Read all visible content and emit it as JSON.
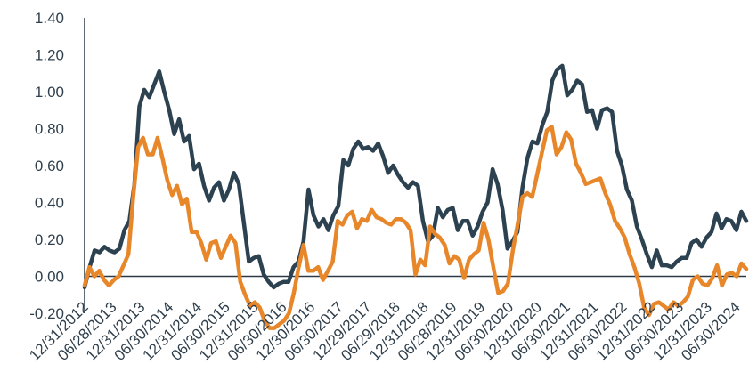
{
  "chart_data": {
    "type": "line",
    "title": "",
    "xlabel": "",
    "ylabel": "",
    "ylim": [
      -0.2,
      1.4
    ],
    "yticks": [
      "1.40",
      "1.20",
      "1.00",
      "0.80",
      "0.60",
      "0.40",
      "0.20",
      "0.00",
      "-0.20"
    ],
    "xticks": [
      "12/31/2012",
      "06/28/2013",
      "12/31/2013",
      "06/30/2014",
      "12/31/2014",
      "06/30/2015",
      "12/31/2015",
      "06/30/2016",
      "12/30/2016",
      "06/30/2017",
      "12/29/2017",
      "06/29/2018",
      "12/31/2018",
      "06/28/2019",
      "12/31/2019",
      "06/30/2020",
      "12/31/2020",
      "06/30/2021",
      "12/31/2021",
      "06/30/2022",
      "12/31/2022",
      "06/30/2023",
      "12/31/2023",
      "06/30/2024"
    ],
    "grid": false,
    "legend": "none",
    "series": [
      {
        "color": "#2d4250",
        "values": [
          -0.06,
          0.05,
          0.14,
          0.13,
          0.16,
          0.14,
          0.13,
          0.15,
          0.25,
          0.3,
          0.5,
          0.92,
          1.01,
          0.97,
          1.04,
          1.11,
          1.0,
          0.9,
          0.77,
          0.85,
          0.73,
          0.76,
          0.58,
          0.61,
          0.49,
          0.41,
          0.48,
          0.51,
          0.41,
          0.47,
          0.56,
          0.5,
          0.29,
          0.08,
          0.1,
          0.11,
          0.01,
          -0.03,
          -0.06,
          -0.04,
          -0.03,
          -0.03,
          0.05,
          0.08,
          0.19,
          0.47,
          0.33,
          0.27,
          0.31,
          0.25,
          0.33,
          0.38,
          0.63,
          0.6,
          0.69,
          0.73,
          0.69,
          0.7,
          0.68,
          0.72,
          0.65,
          0.56,
          0.6,
          0.55,
          0.51,
          0.48,
          0.51,
          0.49,
          0.3,
          0.19,
          0.22,
          0.37,
          0.32,
          0.36,
          0.37,
          0.25,
          0.3,
          0.3,
          0.22,
          0.27,
          0.35,
          0.4,
          0.58,
          0.5,
          0.36,
          0.15,
          0.19,
          0.24,
          0.48,
          0.64,
          0.73,
          0.72,
          0.82,
          0.89,
          1.06,
          1.12,
          1.14,
          0.98,
          1.01,
          1.06,
          1.04,
          0.89,
          0.9,
          0.8,
          0.9,
          0.91,
          0.89,
          0.68,
          0.6,
          0.47,
          0.41,
          0.27,
          0.2,
          0.12,
          0.05,
          0.14,
          0.06,
          0.06,
          0.05,
          0.08,
          0.1,
          0.1,
          0.18,
          0.2,
          0.16,
          0.21,
          0.24,
          0.34,
          0.26,
          0.31,
          0.3,
          0.25,
          0.35,
          0.3
        ]
      },
      {
        "color": "#e8862a",
        "values": [
          -0.05,
          0.05,
          0.0,
          0.03,
          -0.02,
          -0.05,
          -0.02,
          0.0,
          0.06,
          0.12,
          0.43,
          0.7,
          0.75,
          0.66,
          0.66,
          0.75,
          0.64,
          0.52,
          0.44,
          0.49,
          0.39,
          0.42,
          0.24,
          0.24,
          0.18,
          0.09,
          0.18,
          0.19,
          0.1,
          0.16,
          0.22,
          0.18,
          -0.03,
          -0.1,
          -0.16,
          -0.14,
          -0.17,
          -0.24,
          -0.28,
          -0.28,
          -0.26,
          -0.24,
          -0.2,
          -0.09,
          0.05,
          0.17,
          0.03,
          0.03,
          0.05,
          -0.02,
          0.03,
          0.08,
          0.3,
          0.28,
          0.33,
          0.35,
          0.26,
          0.31,
          0.3,
          0.36,
          0.32,
          0.31,
          0.29,
          0.28,
          0.31,
          0.31,
          0.29,
          0.25,
          0.01,
          0.09,
          0.06,
          0.27,
          0.23,
          0.21,
          0.17,
          0.07,
          0.11,
          0.09,
          -0.01,
          0.09,
          0.12,
          0.14,
          0.29,
          0.2,
          0.05,
          -0.09,
          -0.08,
          -0.04,
          0.14,
          0.28,
          0.43,
          0.45,
          0.43,
          0.55,
          0.67,
          0.79,
          0.81,
          0.66,
          0.7,
          0.78,
          0.74,
          0.61,
          0.56,
          0.5,
          0.51,
          0.52,
          0.53,
          0.45,
          0.39,
          0.3,
          0.26,
          0.21,
          0.12,
          0.05,
          -0.04,
          -0.17,
          -0.21,
          -0.15,
          -0.14,
          -0.16,
          -0.18,
          -0.14,
          -0.16,
          -0.14,
          -0.11,
          -0.02,
          0.0,
          -0.04,
          -0.05,
          -0.01,
          0.06,
          -0.05,
          0.01,
          0.02,
          0.0,
          0.07,
          0.04
        ]
      }
    ]
  }
}
